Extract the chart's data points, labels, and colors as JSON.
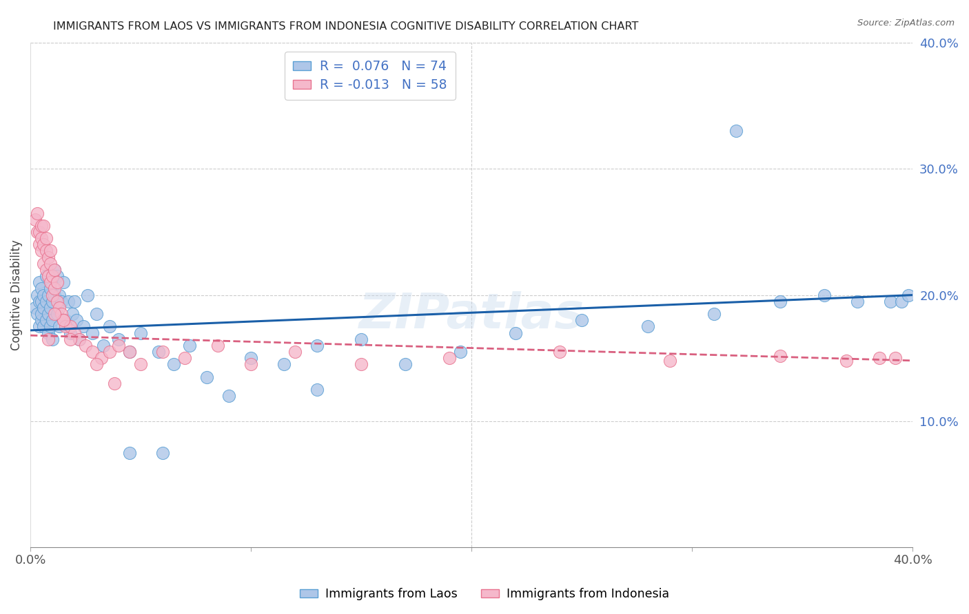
{
  "title": "IMMIGRANTS FROM LAOS VS IMMIGRANTS FROM INDONESIA COGNITIVE DISABILITY CORRELATION CHART",
  "source": "Source: ZipAtlas.com",
  "ylabel": "Cognitive Disability",
  "x_min": 0.0,
  "x_max": 0.4,
  "y_min": 0.0,
  "y_max": 0.4,
  "laos_color": "#aec6e8",
  "laos_edge_color": "#5a9fd4",
  "indonesia_color": "#f5b8cb",
  "indonesia_edge_color": "#e8738f",
  "laos_R": 0.076,
  "laos_N": 74,
  "indonesia_R": -0.013,
  "indonesia_N": 58,
  "laos_line_color": "#1a5fa8",
  "indonesia_line_color": "#d95f7f",
  "watermark": "ZIPatlas",
  "legend_label_laos": "Immigrants from Laos",
  "legend_label_indonesia": "Immigrants from Indonesia",
  "laos_x": [
    0.002,
    0.003,
    0.003,
    0.004,
    0.004,
    0.004,
    0.005,
    0.005,
    0.005,
    0.005,
    0.006,
    0.006,
    0.006,
    0.007,
    0.007,
    0.007,
    0.008,
    0.008,
    0.008,
    0.009,
    0.009,
    0.009,
    0.01,
    0.01,
    0.01,
    0.011,
    0.011,
    0.012,
    0.012,
    0.013,
    0.013,
    0.014,
    0.015,
    0.016,
    0.017,
    0.018,
    0.019,
    0.02,
    0.021,
    0.022,
    0.024,
    0.026,
    0.028,
    0.03,
    0.033,
    0.036,
    0.04,
    0.045,
    0.05,
    0.058,
    0.065,
    0.072,
    0.08,
    0.09,
    0.1,
    0.115,
    0.13,
    0.15,
    0.17,
    0.195,
    0.22,
    0.25,
    0.28,
    0.31,
    0.34,
    0.36,
    0.375,
    0.39,
    0.395,
    0.398,
    0.13,
    0.06,
    0.045,
    0.32
  ],
  "laos_y": [
    0.19,
    0.185,
    0.2,
    0.175,
    0.195,
    0.21,
    0.18,
    0.195,
    0.185,
    0.205,
    0.175,
    0.19,
    0.2,
    0.18,
    0.195,
    0.215,
    0.17,
    0.185,
    0.2,
    0.175,
    0.19,
    0.205,
    0.18,
    0.195,
    0.165,
    0.2,
    0.22,
    0.215,
    0.185,
    0.2,
    0.175,
    0.195,
    0.21,
    0.18,
    0.195,
    0.17,
    0.185,
    0.195,
    0.18,
    0.165,
    0.175,
    0.2,
    0.17,
    0.185,
    0.16,
    0.175,
    0.165,
    0.155,
    0.17,
    0.155,
    0.145,
    0.16,
    0.135,
    0.12,
    0.15,
    0.145,
    0.16,
    0.165,
    0.145,
    0.155,
    0.17,
    0.18,
    0.175,
    0.185,
    0.195,
    0.2,
    0.195,
    0.195,
    0.195,
    0.2,
    0.125,
    0.075,
    0.075,
    0.33
  ],
  "indonesia_x": [
    0.002,
    0.003,
    0.003,
    0.004,
    0.004,
    0.005,
    0.005,
    0.005,
    0.006,
    0.006,
    0.006,
    0.007,
    0.007,
    0.007,
    0.008,
    0.008,
    0.009,
    0.009,
    0.009,
    0.01,
    0.01,
    0.011,
    0.011,
    0.012,
    0.012,
    0.013,
    0.014,
    0.015,
    0.016,
    0.018,
    0.02,
    0.022,
    0.025,
    0.028,
    0.032,
    0.036,
    0.04,
    0.045,
    0.05,
    0.06,
    0.07,
    0.085,
    0.1,
    0.12,
    0.15,
    0.19,
    0.24,
    0.29,
    0.34,
    0.37,
    0.385,
    0.392,
    0.015,
    0.018,
    0.011,
    0.008,
    0.03,
    0.038
  ],
  "indonesia_y": [
    0.26,
    0.25,
    0.265,
    0.24,
    0.25,
    0.235,
    0.245,
    0.255,
    0.225,
    0.24,
    0.255,
    0.22,
    0.235,
    0.245,
    0.215,
    0.23,
    0.21,
    0.225,
    0.235,
    0.2,
    0.215,
    0.205,
    0.22,
    0.195,
    0.21,
    0.19,
    0.185,
    0.18,
    0.175,
    0.175,
    0.17,
    0.165,
    0.16,
    0.155,
    0.15,
    0.155,
    0.16,
    0.155,
    0.145,
    0.155,
    0.15,
    0.16,
    0.145,
    0.155,
    0.145,
    0.15,
    0.155,
    0.148,
    0.152,
    0.148,
    0.15,
    0.15,
    0.18,
    0.165,
    0.185,
    0.165,
    0.145,
    0.13
  ]
}
